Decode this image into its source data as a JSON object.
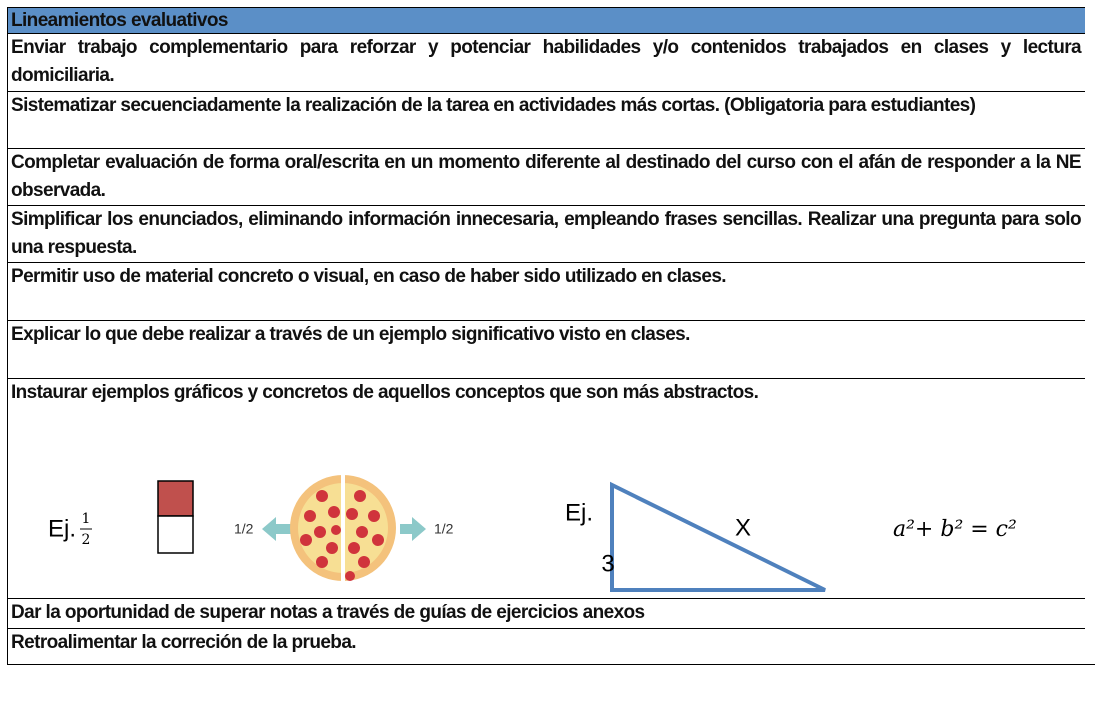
{
  "table": {
    "header": {
      "title": "Lineamientos evaluativos"
    },
    "rows": [
      "Enviar trabajo complementario para reforzar y potenciar habilidades y/o contenidos trabajados en clases y lectura domiciliaria.",
      "Sistematizar secuenciadamente la realización de la tarea en actividades más cortas. (Obligatoria para estudiantes)",
      "Completar evaluación de forma oral/escrita en un momento diferente al destinado del curso con el afán de responder a la NE observada.",
      "Simplificar los enunciados, eliminando información innecesaria, empleando frases sencillas. Realizar una pregunta para solo una respuesta.",
      "Permitir uso de material concreto o visual, en caso de haber sido utilizado en clases.",
      "Explicar lo que debe realizar a través de un ejemplo significativo visto en clases.",
      "Instaurar ejemplos gráficos y concretos de aquellos conceptos que son más abstractos.",
      "Dar la oportunidad de superar notas a través de guías de ejercicios anexos",
      "Retroalimentar la correción de la prueba."
    ],
    "figure": {
      "fraction_example": {
        "prefix": "Ej.",
        "numerator": "1",
        "denominator": "2",
        "pizza_left": "1/2",
        "pizza_right": "1/2"
      },
      "triangle_example": {
        "prefix": "Ej.",
        "side_label": "3",
        "hypotenuse_label": "X",
        "formula": "a²+ b² = c²"
      }
    }
  }
}
